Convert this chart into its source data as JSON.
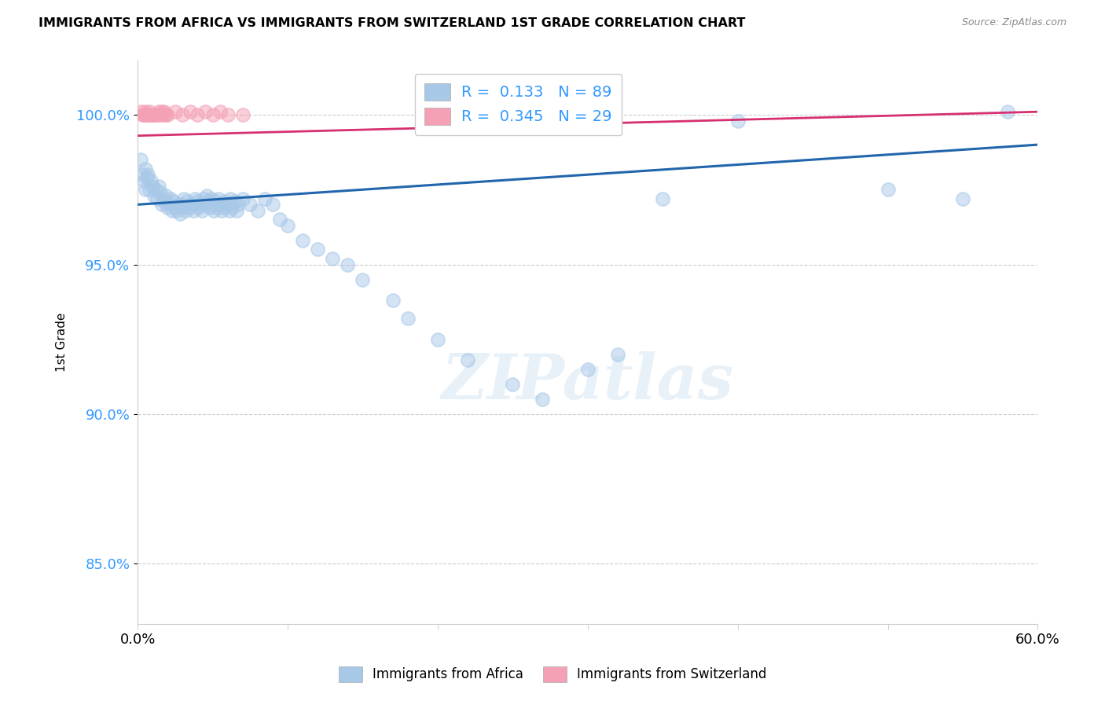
{
  "title": "IMMIGRANTS FROM AFRICA VS IMMIGRANTS FROM SWITZERLAND 1ST GRADE CORRELATION CHART",
  "source": "Source: ZipAtlas.com",
  "ylabel": "1st Grade",
  "yticks": [
    85.0,
    90.0,
    95.0,
    100.0
  ],
  "ytick_labels": [
    "85.0%",
    "90.0%",
    "95.0%",
    "100.0%"
  ],
  "xlim": [
    0.0,
    60.0
  ],
  "ylim": [
    83.0,
    101.8
  ],
  "legend_blue_R": "0.133",
  "legend_blue_N": "89",
  "legend_pink_R": "0.345",
  "legend_pink_N": "29",
  "blue_color": "#a8c8e8",
  "pink_color": "#f4a0b5",
  "blue_line_color": "#2166ac",
  "pink_line_color": "#d63070",
  "blue_scatter_x": [
    0.2,
    0.3,
    0.4,
    0.5,
    0.5,
    0.6,
    0.7,
    0.8,
    0.9,
    1.0,
    1.1,
    1.2,
    1.3,
    1.4,
    1.5,
    1.6,
    1.7,
    1.8,
    1.9,
    2.0,
    2.1,
    2.2,
    2.3,
    2.4,
    2.5,
    2.6,
    2.7,
    2.8,
    2.9,
    3.0,
    3.1,
    3.2,
    3.3,
    3.5,
    3.6,
    3.7,
    3.8,
    4.0,
    4.1,
    4.2,
    4.3,
    4.4,
    4.5,
    4.6,
    4.7,
    4.8,
    4.9,
    5.0,
    5.1,
    5.2,
    5.3,
    5.4,
    5.5,
    5.6,
    5.7,
    5.8,
    6.0,
    6.1,
    6.2,
    6.3,
    6.5,
    6.6,
    6.7,
    7.0,
    7.5,
    8.0,
    8.5,
    9.0,
    9.5,
    10.0,
    11.0,
    12.0,
    13.0,
    14.0,
    15.0,
    17.0,
    18.0,
    20.0,
    22.0,
    25.0,
    27.0,
    30.0,
    32.0,
    35.0,
    40.0,
    50.0,
    55.0,
    58.0
  ],
  "blue_scatter_y": [
    98.5,
    98.0,
    97.8,
    98.2,
    97.5,
    97.9,
    98.0,
    97.5,
    97.8,
    97.6,
    97.3,
    97.5,
    97.2,
    97.6,
    97.4,
    97.0,
    97.2,
    97.1,
    97.3,
    96.9,
    97.0,
    97.2,
    96.8,
    97.1,
    96.9,
    96.8,
    97.0,
    96.7,
    97.0,
    96.9,
    97.2,
    96.8,
    97.1,
    96.9,
    97.0,
    96.8,
    97.2,
    97.1,
    96.9,
    97.0,
    96.8,
    97.2,
    97.0,
    97.3,
    97.1,
    96.9,
    97.2,
    97.0,
    96.8,
    97.1,
    96.9,
    97.2,
    97.0,
    96.8,
    96.9,
    97.1,
    97.0,
    96.8,
    97.2,
    96.9,
    97.1,
    96.8,
    97.0,
    97.2,
    97.0,
    96.8,
    97.2,
    97.0,
    96.5,
    96.3,
    95.8,
    95.5,
    95.2,
    95.0,
    94.5,
    93.8,
    93.2,
    92.5,
    91.8,
    91.0,
    90.5,
    91.5,
    92.0,
    97.2,
    99.8,
    97.5,
    97.2,
    100.1
  ],
  "pink_scatter_x": [
    0.2,
    0.3,
    0.4,
    0.5,
    0.5,
    0.6,
    0.7,
    0.8,
    0.9,
    1.0,
    1.1,
    1.2,
    1.3,
    1.4,
    1.5,
    1.6,
    1.7,
    1.8,
    1.9,
    2.0,
    2.5,
    3.0,
    3.5,
    4.0,
    4.5,
    5.0,
    5.5,
    6.0,
    7.0
  ],
  "pink_scatter_y": [
    100.1,
    100.0,
    100.0,
    100.0,
    100.1,
    100.0,
    100.0,
    100.1,
    100.0,
    100.0,
    100.0,
    100.0,
    100.0,
    100.1,
    100.0,
    100.1,
    100.0,
    100.1,
    100.0,
    100.0,
    100.1,
    100.0,
    100.1,
    100.0,
    100.1,
    100.0,
    100.1,
    100.0,
    100.0
  ],
  "watermark": "ZIPatlas",
  "legend_label_blue": "Immigrants from Africa",
  "legend_label_pink": "Immigrants from Switzerland",
  "blue_trendline": [
    0.0,
    60.0,
    97.0,
    99.0
  ],
  "pink_trendline": [
    0.0,
    60.0,
    99.3,
    100.1
  ]
}
